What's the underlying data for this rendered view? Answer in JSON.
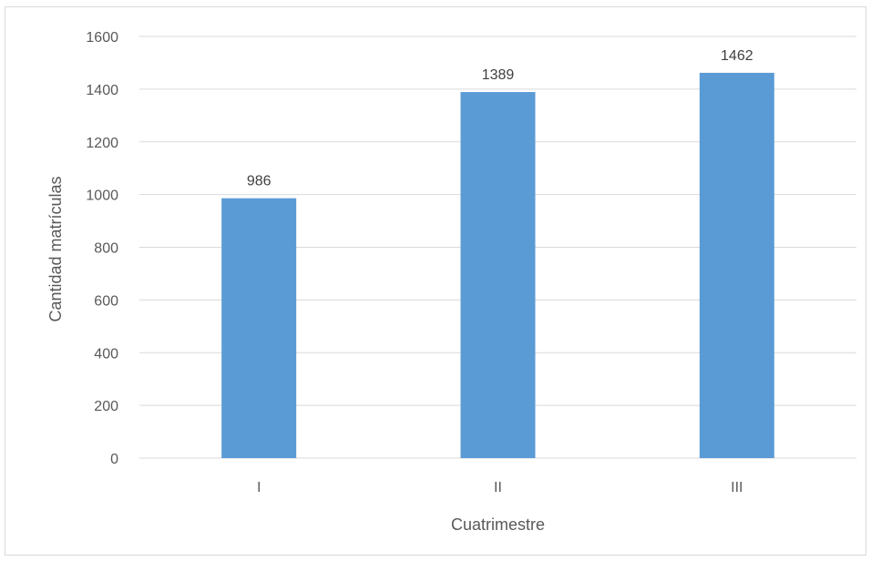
{
  "chart_data": {
    "type": "bar",
    "categories": [
      "I",
      "II",
      "III"
    ],
    "values": [
      986,
      1389,
      1462
    ],
    "data_labels": [
      "986",
      "1389",
      "1462"
    ],
    "title": "",
    "xlabel": "Cuatrimestre",
    "ylabel": "Cantidad matrículas",
    "ylim": [
      0,
      1600
    ],
    "yticks": [
      "0",
      "200",
      "400",
      "600",
      "800",
      "1000",
      "1200",
      "1400",
      "1600"
    ],
    "grid": true,
    "legend": "none",
    "bar_color": "#5b9bd5"
  }
}
